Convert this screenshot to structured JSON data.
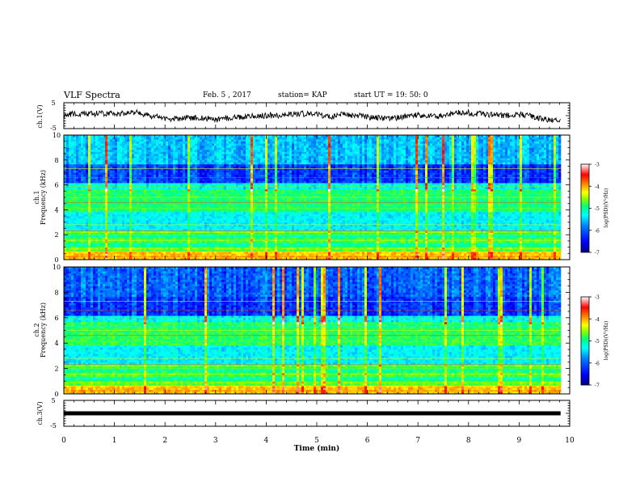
{
  "header": {
    "title": "VLF Spectra",
    "date": "Feb. 5 , 2017",
    "station": "station= KAP",
    "start": "start  UT =  19: 50: 0"
  },
  "labels": {
    "ch1_waveform_ylabel": "ch.1(V)",
    "ch1_spec_ylabel_top": "ch.1",
    "ch1_spec_ylabel_bottom": "Frequency (kHz)",
    "ch2_spec_ylabel_top": "ch.2",
    "ch2_spec_ylabel_bottom": "Frequency (kHz)",
    "ch3_waveform_ylabel": "ch.3(V)",
    "xlabel": "Time (min)",
    "colorbar_label": "log(PSD)(V²/Hz)"
  },
  "colors": {
    "colormap": [
      "#00007f",
      "#0000ff",
      "#0080ff",
      "#00ffff",
      "#00ff80",
      "#80ff00",
      "#ffff00",
      "#ff8000",
      "#ff0000",
      "#ffffff"
    ],
    "trace": "#000000",
    "background": "#ffffff"
  },
  "chart_data": [
    {
      "type": "line",
      "name": "ch1-waveform",
      "ylabel": "ch.1(V)",
      "xlim": [
        0,
        10
      ],
      "ylim": [
        -5,
        5
      ],
      "yticks": [
        "5",
        "-5"
      ],
      "x_end": 9.82,
      "noise_amplitude_V": 2.2
    },
    {
      "type": "heatmap",
      "name": "ch1-spectrogram",
      "ylabel": "Frequency (kHz)",
      "xlim": [
        0,
        10
      ],
      "ylim": [
        0,
        10
      ],
      "yticks": [
        "0",
        "2",
        "4",
        "6",
        "8",
        "10"
      ],
      "x_end": 9.82,
      "colorbar": {
        "range": [
          -7,
          -3
        ],
        "ticks": [
          "-3",
          "-4",
          "-5",
          "-6",
          "-7"
        ],
        "label": "log(PSD)(V²/Hz)"
      }
    },
    {
      "type": "heatmap",
      "name": "ch2-spectrogram",
      "ylabel": "Frequency (kHz)",
      "xlim": [
        0,
        10
      ],
      "ylim": [
        0,
        10
      ],
      "yticks": [
        "0",
        "2",
        "4",
        "6",
        "8",
        "10"
      ],
      "x_end": 9.82,
      "colorbar": {
        "range": [
          -7,
          -3
        ],
        "ticks": [
          "-3",
          "-4",
          "-5",
          "-6",
          "-7"
        ],
        "label": "log(PSD)(V²/Hz)"
      }
    },
    {
      "type": "line",
      "name": "ch3-waveform",
      "ylabel": "ch.3(V)",
      "xlim": [
        0,
        10
      ],
      "ylim": [
        -5,
        5
      ],
      "yticks": [
        "5",
        "-5"
      ],
      "x_end": 9.82,
      "constant_value_V": 0
    }
  ],
  "x_axis": {
    "ticks": [
      "0",
      "1",
      "2",
      "3",
      "4",
      "5",
      "6",
      "7",
      "8",
      "9",
      "10"
    ],
    "label": "Time (min)"
  }
}
